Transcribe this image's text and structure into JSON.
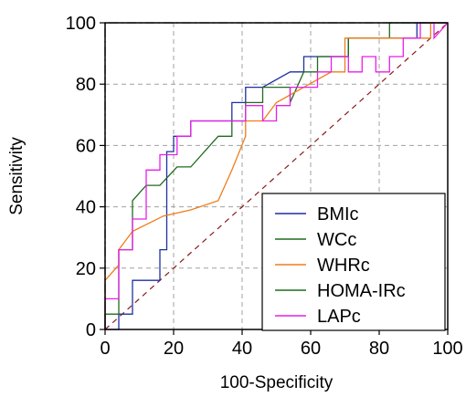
{
  "chart_data": {
    "type": "line",
    "title": "",
    "xlabel": "100-Specificity",
    "ylabel": "Sensitivity",
    "xlim": [
      0,
      100
    ],
    "ylim": [
      0,
      100
    ],
    "xticks": [
      "0",
      "20",
      "40",
      "60",
      "80",
      "100"
    ],
    "yticks": [
      "0",
      "20",
      "40",
      "60",
      "80",
      "100"
    ],
    "grid": true,
    "legend_position": "bottom-right",
    "reference_line": {
      "x": [
        0,
        100
      ],
      "y": [
        0,
        100
      ],
      "color": "#8b1a1a",
      "style": "dashed"
    },
    "series": [
      {
        "name": "BMIc",
        "color": "#1f2fa0",
        "x": [
          0,
          4,
          4,
          8,
          8,
          16,
          16,
          18,
          18,
          20,
          20,
          25,
          25,
          37,
          37,
          41,
          41,
          46,
          54,
          58,
          58,
          71,
          71,
          91,
          91,
          100
        ],
        "y": [
          0,
          0,
          5,
          5,
          16,
          16,
          26,
          26,
          58,
          58,
          63,
          63,
          68,
          68,
          74,
          74,
          79,
          79,
          84,
          84,
          89,
          89,
          95,
          95,
          100,
          100
        ]
      },
      {
        "name": "WCc",
        "color": "#1f6b1f",
        "x": [
          0,
          0,
          4,
          4,
          8,
          8,
          12,
          16,
          21,
          25,
          29,
          33,
          37,
          37,
          41,
          41,
          46,
          46,
          54,
          54,
          58,
          62,
          62,
          71,
          71,
          83,
          83,
          100
        ],
        "y": [
          0,
          5,
          5,
          26,
          26,
          42,
          47,
          47,
          53,
          53,
          58,
          63,
          63,
          68,
          68,
          74,
          74,
          79,
          79,
          74,
          84,
          84,
          89,
          89,
          95,
          95,
          100,
          100
        ]
      },
      {
        "name": "WHRc",
        "color": "#f07c1a",
        "x": [
          0,
          0,
          4,
          4,
          8,
          17,
          25,
          33,
          37,
          41,
          41,
          46,
          50,
          50,
          58,
          66,
          70,
          70,
          75,
          75,
          91,
          95,
          95,
          100
        ],
        "y": [
          0,
          16,
          21,
          26,
          32,
          37,
          39,
          42,
          52,
          63,
          68,
          68,
          74,
          74,
          79,
          84,
          84,
          95,
          95,
          95,
          95,
          95,
          100,
          100
        ]
      },
      {
        "name": "HOMA-IRc",
        "color": "#1f6b1f",
        "x": [
          0,
          0,
          100
        ],
        "y": [
          0,
          100,
          100
        ]
      },
      {
        "name": "LAPc",
        "color": "#e81ee8",
        "x": [
          0,
          0,
          4,
          4,
          8,
          8,
          12,
          12,
          16,
          16,
          21,
          21,
          25,
          25,
          41,
          41,
          46,
          46,
          50,
          50,
          54,
          54,
          62,
          62,
          66,
          66,
          71,
          71,
          75,
          75,
          79,
          79,
          83,
          83,
          87,
          87,
          92,
          92,
          96,
          96,
          100
        ],
        "y": [
          0,
          10,
          10,
          26,
          26,
          36,
          36,
          52,
          52,
          57,
          57,
          63,
          63,
          68,
          68,
          73,
          73,
          68,
          68,
          73,
          73,
          79,
          79,
          84,
          84,
          89,
          89,
          84,
          84,
          89,
          89,
          84,
          84,
          89,
          89,
          95,
          95,
          100,
          100,
          95,
          100
        ]
      }
    ]
  }
}
